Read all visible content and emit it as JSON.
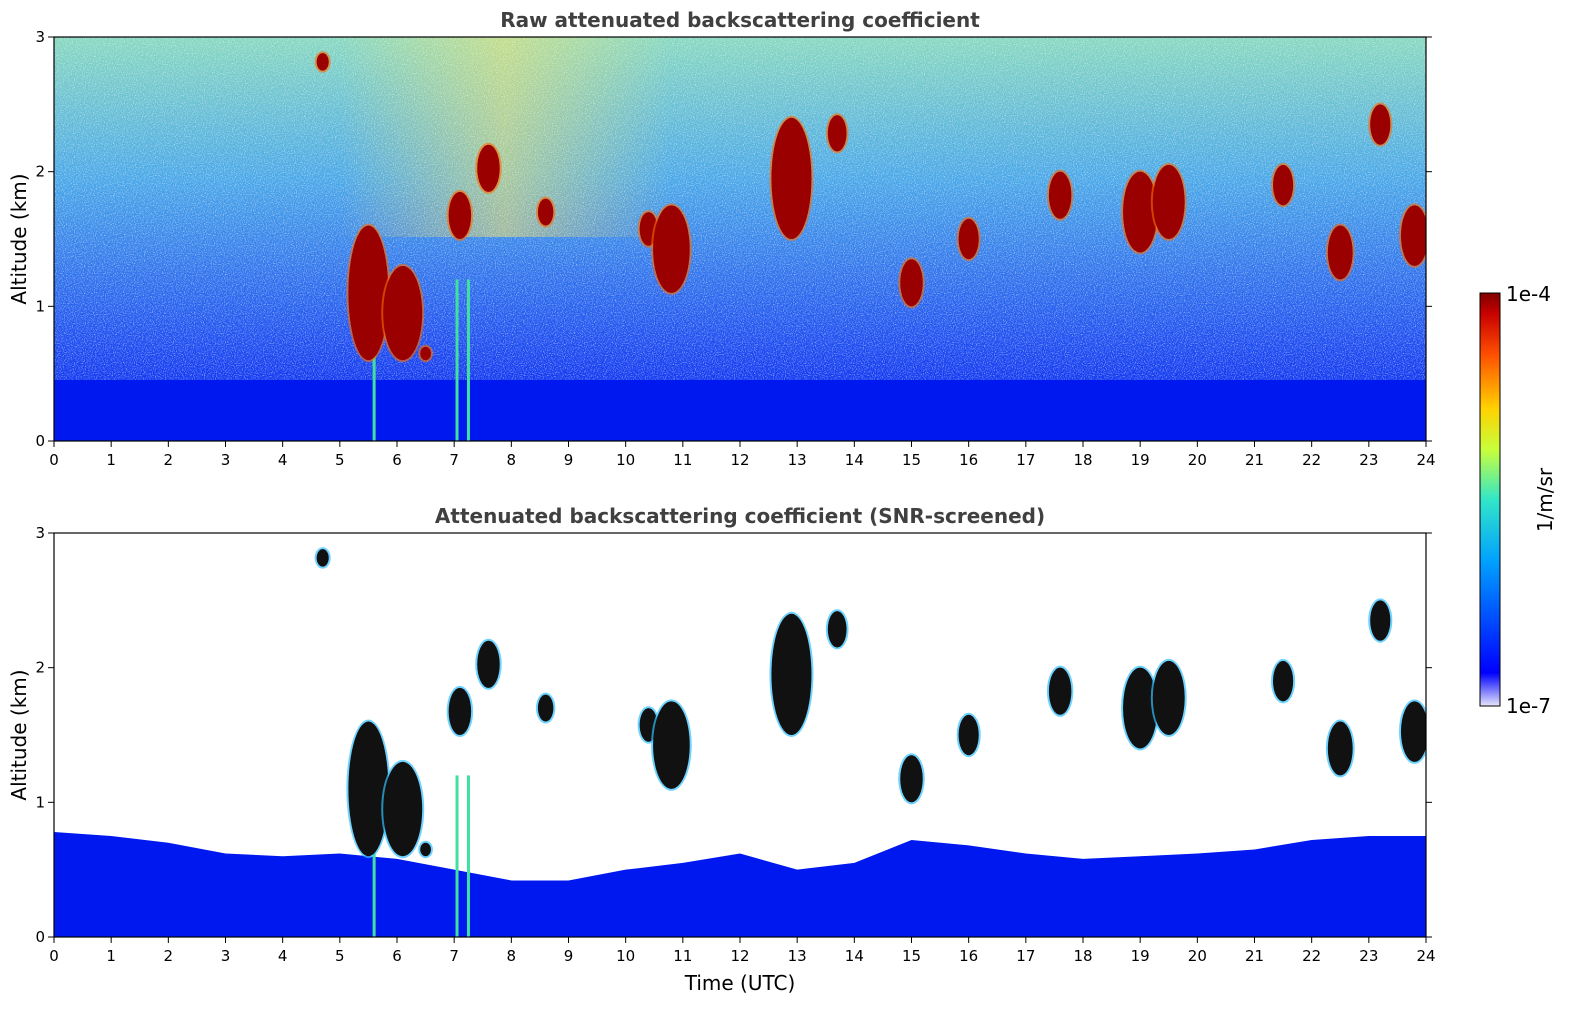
{
  "chart_data": [
    {
      "type": "heatmap",
      "title": "Raw attenuated backscattering coefficient",
      "xlabel": "",
      "ylabel": "Altitude (km)",
      "xlim": [
        0,
        24
      ],
      "ylim": [
        0,
        3
      ],
      "xticks": [
        "0",
        "1",
        "2",
        "3",
        "4",
        "5",
        "6",
        "7",
        "8",
        "9",
        "10",
        "11",
        "12",
        "13",
        "14",
        "15",
        "16",
        "17",
        "18",
        "19",
        "20",
        "21",
        "22",
        "23",
        "24"
      ],
      "yticks": [
        "0",
        "1",
        "2",
        "3"
      ],
      "colorscale": "log, jet",
      "near_surface_layer_top_km": 0.45,
      "cloud_features": [
        {
          "time": 4.7,
          "alt_min": 2.75,
          "alt_max": 2.88
        },
        {
          "time": 5.5,
          "alt_min": 0.6,
          "alt_max": 1.6
        },
        {
          "time": 6.1,
          "alt_min": 0.6,
          "alt_max": 1.3
        },
        {
          "time": 6.5,
          "alt_min": 0.6,
          "alt_max": 0.7
        },
        {
          "time": 7.1,
          "alt_min": 1.5,
          "alt_max": 1.85
        },
        {
          "time": 7.6,
          "alt_min": 1.85,
          "alt_max": 2.2
        },
        {
          "time": 8.6,
          "alt_min": 1.6,
          "alt_max": 1.8
        },
        {
          "time": 10.4,
          "alt_min": 1.45,
          "alt_max": 1.7
        },
        {
          "time": 10.8,
          "alt_min": 1.1,
          "alt_max": 1.75
        },
        {
          "time": 12.9,
          "alt_min": 1.5,
          "alt_max": 2.4
        },
        {
          "time": 13.7,
          "alt_min": 2.15,
          "alt_max": 2.42
        },
        {
          "time": 15.0,
          "alt_min": 1.0,
          "alt_max": 1.35
        },
        {
          "time": 16.0,
          "alt_min": 1.35,
          "alt_max": 1.65
        },
        {
          "time": 17.6,
          "alt_min": 1.65,
          "alt_max": 2.0
        },
        {
          "time": 19.0,
          "alt_min": 1.4,
          "alt_max": 2.0
        },
        {
          "time": 19.5,
          "alt_min": 1.5,
          "alt_max": 2.05
        },
        {
          "time": 21.5,
          "alt_min": 1.75,
          "alt_max": 2.05
        },
        {
          "time": 22.5,
          "alt_min": 1.2,
          "alt_max": 1.6
        },
        {
          "time": 23.2,
          "alt_min": 2.2,
          "alt_max": 2.5
        },
        {
          "time": 23.8,
          "alt_min": 1.3,
          "alt_max": 1.75
        }
      ]
    },
    {
      "type": "heatmap",
      "title": "Attenuated backscattering coefficient (SNR-screened)",
      "xlabel": "Time (UTC)",
      "ylabel": "Altitude (km)",
      "xlim": [
        0,
        24
      ],
      "ylim": [
        0,
        3
      ],
      "xticks": [
        "0",
        "1",
        "2",
        "3",
        "4",
        "5",
        "6",
        "7",
        "8",
        "9",
        "10",
        "11",
        "12",
        "13",
        "14",
        "15",
        "16",
        "17",
        "18",
        "19",
        "20",
        "21",
        "22",
        "23",
        "24"
      ],
      "yticks": [
        "0",
        "1",
        "2",
        "3"
      ],
      "boundary_layer_top": {
        "time": [
          0,
          1,
          2,
          3,
          4,
          5,
          6,
          7,
          8,
          9,
          10,
          11,
          12,
          13,
          14,
          15,
          16,
          17,
          18,
          19,
          20,
          21,
          22,
          23,
          24
        ],
        "alt_km": [
          0.78,
          0.75,
          0.7,
          0.62,
          0.6,
          0.62,
          0.58,
          0.5,
          0.42,
          0.42,
          0.5,
          0.55,
          0.62,
          0.5,
          0.55,
          0.72,
          0.68,
          0.62,
          0.58,
          0.6,
          0.62,
          0.65,
          0.72,
          0.75,
          0.75
        ]
      }
    }
  ],
  "colorbar": {
    "label": "1/m/sr",
    "max_label": "1e-4",
    "min_label": "1e-7",
    "colors": [
      "#e6e6fa",
      "#0000ff",
      "#00b4ff",
      "#32e6c8",
      "#c8ff3c",
      "#ffd200",
      "#ff5000",
      "#c80000",
      "#800000"
    ]
  }
}
